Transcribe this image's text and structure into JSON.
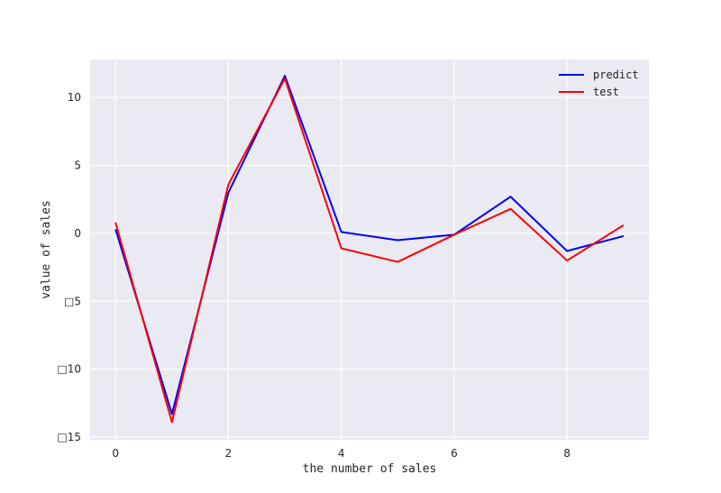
{
  "chart_data": {
    "type": "line",
    "title": "",
    "xlabel": "the number of sales",
    "ylabel": "value of sales",
    "x": [
      0,
      1,
      2,
      3,
      4,
      5,
      6,
      7,
      8,
      9
    ],
    "xlim": [
      -0.45,
      9.45
    ],
    "ylim": [
      -15.2,
      12.8
    ],
    "xticks": [
      0,
      2,
      4,
      6,
      8
    ],
    "xtick_labels": [
      "0",
      "2",
      "4",
      "6",
      "8"
    ],
    "yticks": [
      10,
      5,
      0,
      -5,
      -10,
      -15
    ],
    "ytick_labels": [
      "10",
      "5",
      "0",
      "□5",
      "□10",
      "□15"
    ],
    "grid": true,
    "legend_position": "top-right",
    "series": [
      {
        "name": "predict",
        "color": "#0000ff",
        "values": [
          0.3,
          -13.3,
          3.0,
          11.6,
          0.1,
          -0.5,
          -0.1,
          2.7,
          -1.3,
          -0.2
        ]
      },
      {
        "name": "test",
        "color": "#ff0000",
        "values": [
          0.8,
          -13.9,
          3.6,
          11.4,
          -1.1,
          -2.1,
          -0.1,
          1.8,
          -2.0,
          0.6
        ]
      }
    ]
  }
}
